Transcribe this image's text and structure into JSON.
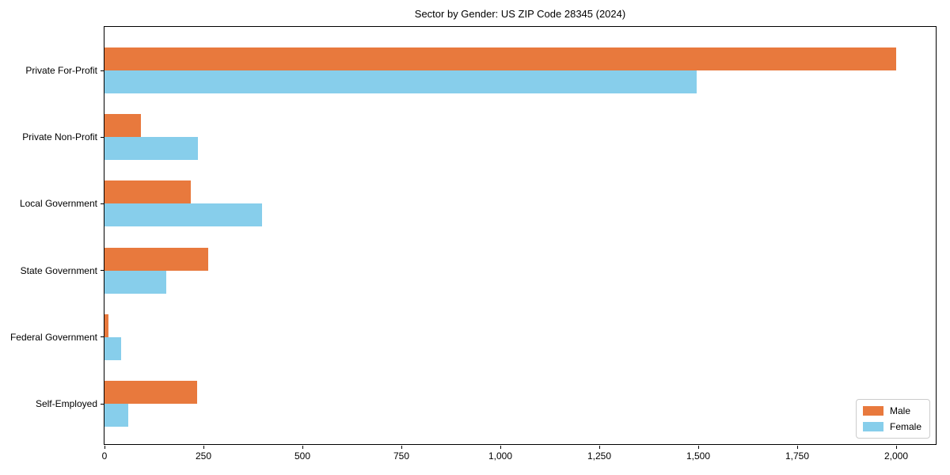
{
  "title": "Sector by Gender: US ZIP Code 28345 (2024)",
  "colors": {
    "male": "#e8793d",
    "female": "#87ceeb",
    "axis": "#000000",
    "background": "#ffffff",
    "legend_border": "#cccccc"
  },
  "legend": {
    "position": "lower right",
    "items": [
      {
        "label": "Male",
        "color": "#e8793d"
      },
      {
        "label": "Female",
        "color": "#87ceeb"
      }
    ]
  },
  "chart_data": {
    "type": "bar",
    "orientation": "horizontal",
    "title": "Sector by Gender: US ZIP Code 28345 (2024)",
    "xlabel": "",
    "ylabel": "",
    "categories": [
      "Private For-Profit",
      "Private Non-Profit",
      "Local Government",
      "State Government",
      "Federal Government",
      "Self-Employed"
    ],
    "series": [
      {
        "name": "Male",
        "color": "#e8793d",
        "values": [
          2000,
          92,
          218,
          262,
          11,
          233
        ]
      },
      {
        "name": "Female",
        "color": "#87ceeb",
        "values": [
          1495,
          236,
          397,
          156,
          41,
          59
        ]
      }
    ],
    "xlim": [
      0,
      2100
    ],
    "xticks": [
      0,
      250,
      500,
      750,
      1000,
      1250,
      1500,
      1750,
      2000
    ],
    "xtick_labels": [
      "0",
      "250",
      "500",
      "750",
      "1,000",
      "1,250",
      "1,500",
      "1,750",
      "2,000"
    ],
    "grid": false,
    "legend_position": "lower right"
  }
}
